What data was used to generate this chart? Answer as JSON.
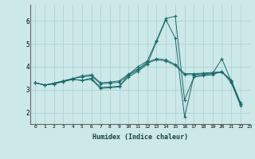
{
  "xlabel": "Humidex (Indice chaleur)",
  "bg_color": "#cce8e8",
  "grid_color": "#aacfcf",
  "line_color": "#1a6b6b",
  "marker": "+",
  "xlim": [
    -0.5,
    23
  ],
  "ylim": [
    1.5,
    6.7
  ],
  "yticks": [
    2,
    3,
    4,
    5,
    6
  ],
  "xticks": [
    0,
    1,
    2,
    3,
    4,
    5,
    6,
    7,
    8,
    9,
    10,
    11,
    12,
    13,
    14,
    15,
    16,
    17,
    18,
    19,
    20,
    21,
    22,
    23
  ],
  "lines": [
    [
      3.3,
      3.2,
      3.25,
      3.35,
      3.45,
      3.4,
      3.45,
      3.05,
      3.08,
      3.12,
      3.65,
      4.0,
      4.25,
      5.15,
      6.1,
      6.2,
      2.55,
      3.55,
      3.6,
      3.65,
      3.8,
      3.3,
      2.3
    ],
    [
      3.3,
      3.2,
      3.25,
      3.35,
      3.45,
      3.4,
      3.5,
      3.1,
      3.12,
      3.15,
      3.55,
      3.8,
      4.1,
      5.1,
      6.05,
      5.25,
      1.8,
      3.6,
      3.65,
      3.7,
      4.35,
      3.35,
      2.35
    ],
    [
      3.3,
      3.2,
      3.28,
      3.38,
      3.48,
      3.55,
      3.6,
      3.25,
      3.28,
      3.32,
      3.62,
      3.85,
      4.15,
      4.3,
      4.25,
      4.05,
      3.65,
      3.65,
      3.7,
      3.72,
      3.75,
      3.38,
      2.38
    ],
    [
      3.3,
      3.2,
      3.28,
      3.38,
      3.48,
      3.6,
      3.65,
      3.3,
      3.33,
      3.38,
      3.68,
      3.9,
      4.2,
      4.35,
      4.3,
      4.1,
      3.7,
      3.7,
      3.72,
      3.75,
      3.78,
      3.42,
      2.42
    ]
  ]
}
